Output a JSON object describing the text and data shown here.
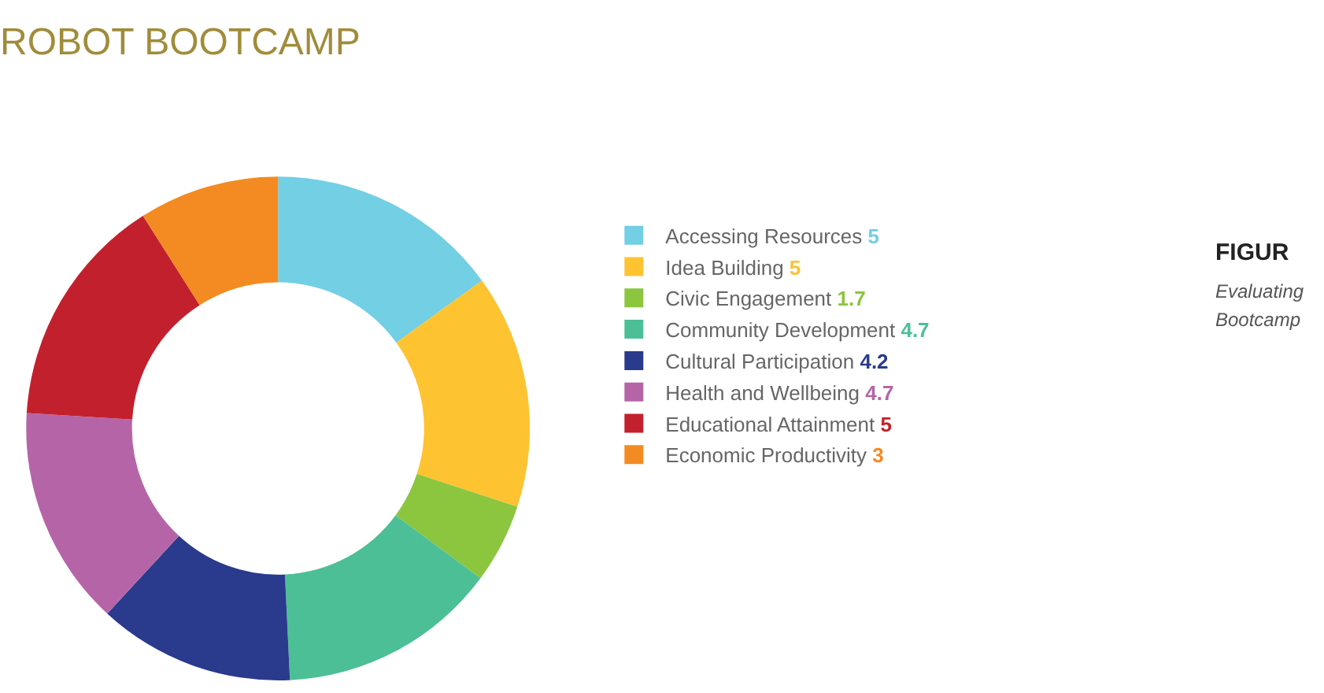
{
  "chart_data": {
    "type": "donut",
    "title": "ROBOT BOOTCAMP",
    "categories": [
      "Accessing Resources",
      "Idea Building",
      "Civic Engagement",
      "Community Development",
      "Cultural Participation",
      "Health and Wellbeing",
      "Educational Attainment",
      "Economic Productivity"
    ],
    "values": [
      5,
      5,
      1.7,
      4.7,
      4.2,
      4.7,
      5,
      3
    ],
    "colors": [
      "#72cfe4",
      "#fdc331",
      "#8cc63f",
      "#4cbf96",
      "#2a3a8c",
      "#b565a7",
      "#c3202e",
      "#f38b22"
    ],
    "data_labels": true,
    "legend": "right",
    "annotations": [
      "FIGUR",
      "Evaluating",
      "Bootcamp"
    ]
  }
}
